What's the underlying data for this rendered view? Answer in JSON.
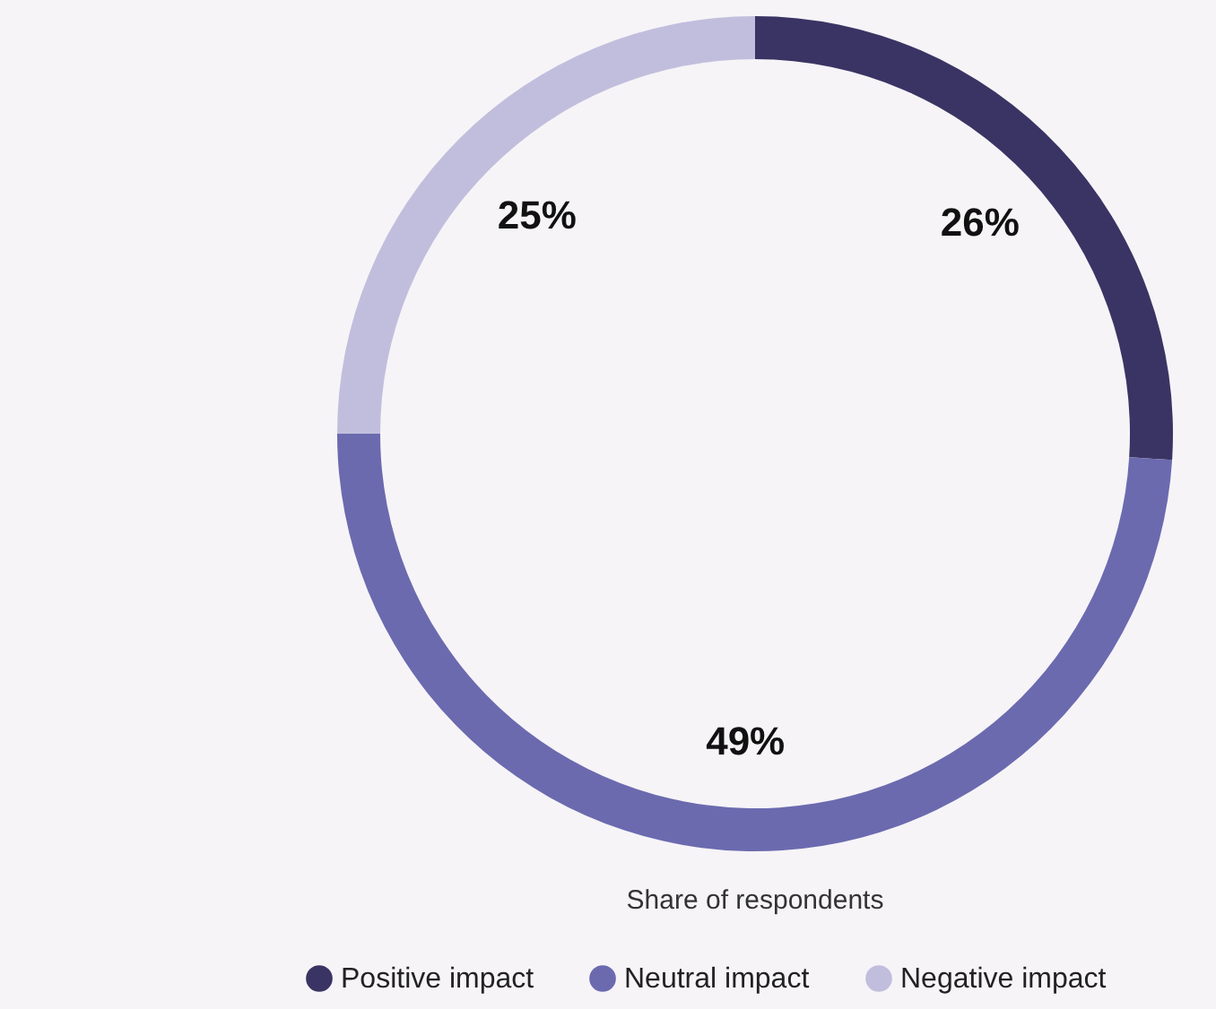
{
  "chart_data": {
    "type": "donut",
    "categories": [
      "Positive impact",
      "Neutral impact",
      "Negative impact"
    ],
    "values": [
      26,
      49,
      25
    ],
    "colors": [
      "#3a3464",
      "#6b6aaf",
      "#c1bedd"
    ],
    "value_labels": [
      "26%",
      "49%",
      "25%"
    ],
    "annotations": [
      "Share of respondents"
    ],
    "legend": "bottom"
  }
}
